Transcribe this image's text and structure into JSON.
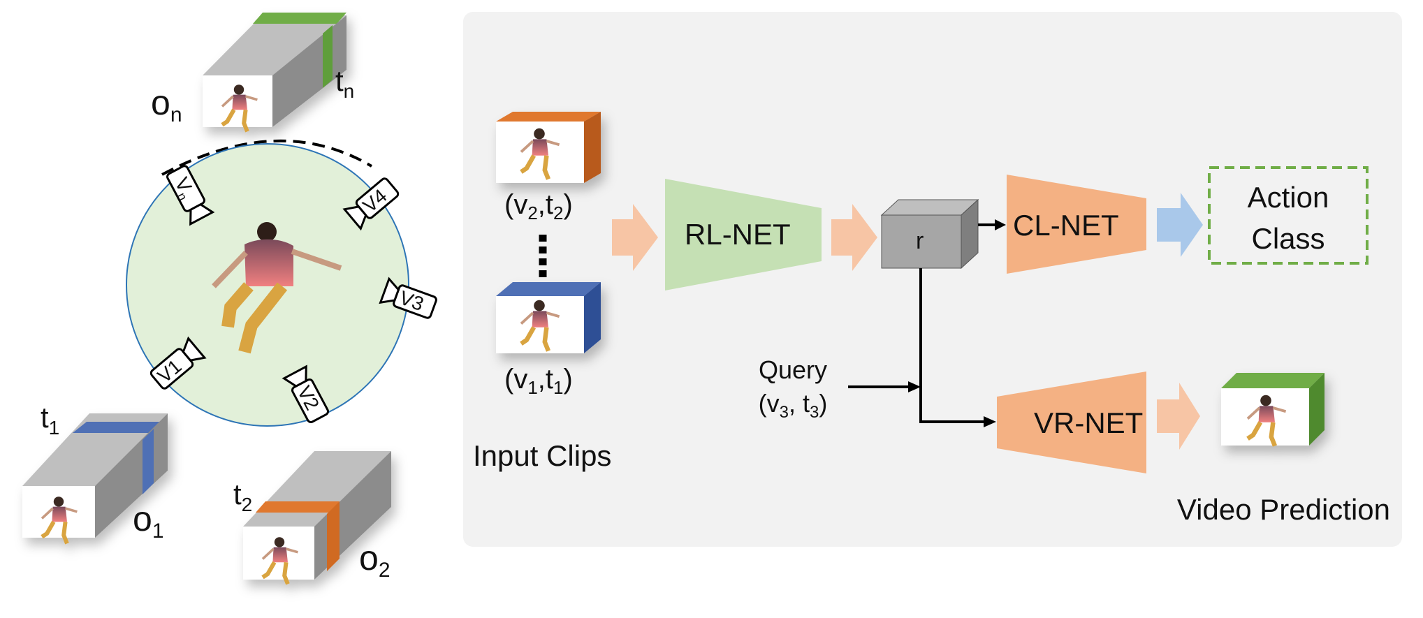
{
  "left": {
    "cubes": [
      {
        "id": "on",
        "obs_label": "o",
        "obs_sub": "n",
        "time_label": "t",
        "time_sub": "n",
        "band_color": "#6FAF4F"
      },
      {
        "id": "o1",
        "obs_label": "o",
        "obs_sub": "1",
        "time_label": "t",
        "time_sub": "1",
        "band_color": "#4F6FB5"
      },
      {
        "id": "o2",
        "obs_label": "o",
        "obs_sub": "2",
        "time_label": "t",
        "time_sub": "2",
        "band_color": "#E0782E"
      }
    ],
    "cameras": [
      {
        "id": "vn",
        "label": "V",
        "sub": "n"
      },
      {
        "id": "v4",
        "label": "V4",
        "sub": ""
      },
      {
        "id": "v3",
        "label": "V3",
        "sub": ""
      },
      {
        "id": "v1",
        "label": "V1",
        "sub": ""
      },
      {
        "id": "v2",
        "label": "V2",
        "sub": ""
      }
    ]
  },
  "right": {
    "input_top_label": {
      "open": "(v",
      "sub1": "2",
      "mid": ",t",
      "sub2": "2",
      "close": ")"
    },
    "input_bottom_label": {
      "open": "(v",
      "sub1": "1",
      "mid": ",t",
      "sub2": "1",
      "close": ")"
    },
    "input_clips_caption": "Input Clips",
    "rl_net": "RL-NET",
    "cl_net": "CL-NET",
    "vr_net": "VR-NET",
    "r_label": "r",
    "action_class_line1": "Action",
    "action_class_line2": "Class",
    "query_line1": "Query",
    "query_line2": {
      "open": "(v",
      "sub1": "3",
      "mid": ",  t",
      "sub2": "3",
      "close": ")"
    },
    "video_prediction": "Video Prediction"
  },
  "colors": {
    "panel_bg": "#F2F2F2",
    "rl_net": "#C5E0B4",
    "cl_vr_net": "#F4B183",
    "arrow_orange": "#F7C5A5",
    "arrow_blue": "#A9C8EA",
    "action_border": "#70AD47",
    "circle_fill": "#E2F0D9",
    "circle_stroke": "#2E75B6",
    "cube_gray": "#A6A6A6",
    "clip_orange": "#E0782E",
    "clip_blue": "#4F6FB5",
    "clip_green": "#6FAF4F"
  }
}
